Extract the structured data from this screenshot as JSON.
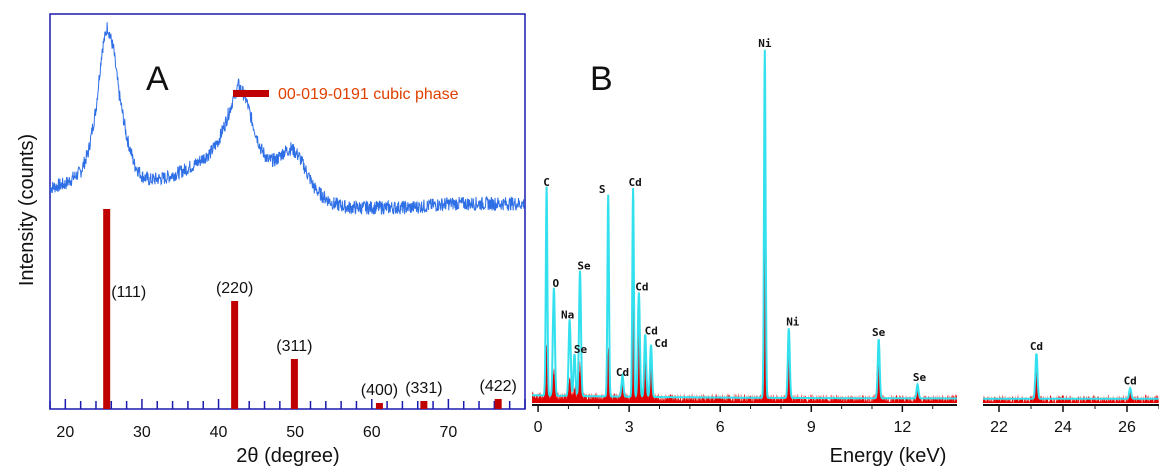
{
  "colors": {
    "xrd_line": "#2f6fe6",
    "frame": "#1a1ab0",
    "reference_bar": "#c00000",
    "legend_text": "#e04000",
    "eds_cyan": "#33e0ee",
    "eds_red": "#e00000",
    "axis": "#111111"
  },
  "chart_data": [
    {
      "type": "line",
      "panel": "A",
      "xlabel": "2θ  (degree)",
      "ylabel": "Intensity  (counts)",
      "xlim": [
        18,
        80
      ],
      "xticks": [
        20,
        30,
        40,
        50,
        60,
        70
      ],
      "legend": {
        "label": "00-019-0191 cubic phase",
        "placement": "top-right"
      },
      "series": [
        {
          "type": "line",
          "x": [
            18,
            20,
            22,
            23,
            24,
            24.8,
            25.5,
            26.3,
            27,
            28,
            29,
            30,
            31,
            33,
            35,
            37,
            39,
            40,
            41,
            42,
            42.6,
            43.5,
            44.5,
            45.5,
            46.5,
            47.5,
            48.5,
            49.5,
            50.5,
            51.5,
            52.5,
            53.5,
            55,
            57,
            60,
            65,
            70,
            75,
            80
          ],
          "y": [
            0.56,
            0.57,
            0.6,
            0.65,
            0.76,
            0.91,
            0.97,
            0.91,
            0.8,
            0.69,
            0.62,
            0.59,
            0.58,
            0.585,
            0.6,
            0.62,
            0.65,
            0.68,
            0.73,
            0.79,
            0.82,
            0.79,
            0.72,
            0.66,
            0.63,
            0.63,
            0.65,
            0.66,
            0.64,
            0.6,
            0.56,
            0.54,
            0.52,
            0.51,
            0.51,
            0.51,
            0.52,
            0.52,
            0.52
          ]
        },
        {
          "type": "bar",
          "name": "00-019-0191 cubic phase",
          "peaks": [
            {
              "x": 25.4,
              "value": 100,
              "label": "(111)"
            },
            {
              "x": 42.1,
              "value": 54,
              "label": "(220)"
            },
            {
              "x": 49.9,
              "value": 25,
              "label": "(311)"
            },
            {
              "x": 61.0,
              "value": 3,
              "label": "(400)"
            },
            {
              "x": 66.8,
              "value": 4,
              "label": "(331)"
            },
            {
              "x": 76.5,
              "value": 5,
              "label": "(422)"
            }
          ]
        }
      ]
    },
    {
      "type": "area",
      "panel": "B",
      "xlabel": "Energy     (keV)",
      "axis_breaks": [
        {
          "xlim": [
            -0.2,
            13.8
          ],
          "xticks": [
            0,
            3,
            6,
            9,
            12
          ]
        },
        {
          "xlim": [
            21.5,
            27
          ],
          "xticks": [
            22,
            24,
            26
          ]
        }
      ],
      "peaks": [
        {
          "x": 0.28,
          "value": 0.6,
          "label": "C"
        },
        {
          "x": 0.52,
          "value": 0.31,
          "label": "O"
        },
        {
          "x": 1.04,
          "value": 0.22,
          "label": "Na"
        },
        {
          "x": 1.38,
          "value": 0.36,
          "label": "Se"
        },
        {
          "x": 1.2,
          "value": 0.12,
          "label": "Se"
        },
        {
          "x": 2.31,
          "value": 0.58,
          "label": "S"
        },
        {
          "x": 2.78,
          "value": 0.06,
          "label": "Cd"
        },
        {
          "x": 3.13,
          "value": 0.6,
          "label": "Cd"
        },
        {
          "x": 3.32,
          "value": 0.3,
          "label": "Cd"
        },
        {
          "x": 3.53,
          "value": 0.18,
          "label": "Cd"
        },
        {
          "x": 3.72,
          "value": 0.15,
          "label": "Cd"
        },
        {
          "x": 7.47,
          "value": 1.0,
          "label": "Ni"
        },
        {
          "x": 8.26,
          "value": 0.2,
          "label": "Ni"
        },
        {
          "x": 11.22,
          "value": 0.17,
          "label": "Se"
        },
        {
          "x": 12.5,
          "value": 0.04,
          "label": "Se"
        },
        {
          "x": 23.17,
          "value": 0.13,
          "label": "Cd"
        },
        {
          "x": 26.1,
          "value": 0.03,
          "label": "Cd"
        }
      ]
    }
  ],
  "panels": {
    "a": {
      "letter": "A",
      "ylabel": "Intensity  (counts)",
      "xlabel": "2θ  (degree)",
      "legend": "00-019-0191 cubic phase",
      "ticks": [
        "20",
        "30",
        "40",
        "50",
        "60",
        "70"
      ],
      "hkl": [
        "(111)",
        "(220)",
        "(311)",
        "(400)",
        "(331)",
        "(422)"
      ]
    },
    "b": {
      "letter": "B",
      "xlabel": "Energy     (keV)",
      "ticks_main": [
        "0",
        "3",
        "6",
        "9",
        "12"
      ],
      "ticks_right": [
        "22",
        "24",
        "26"
      ],
      "labels": [
        "C",
        "O",
        "Na",
        "Se",
        "Se",
        "S",
        "Cd",
        "Cd",
        "Cd",
        "Cd",
        "Cd",
        "Ni",
        "Ni",
        "Se",
        "Se",
        "Cd",
        "Cd"
      ]
    }
  }
}
